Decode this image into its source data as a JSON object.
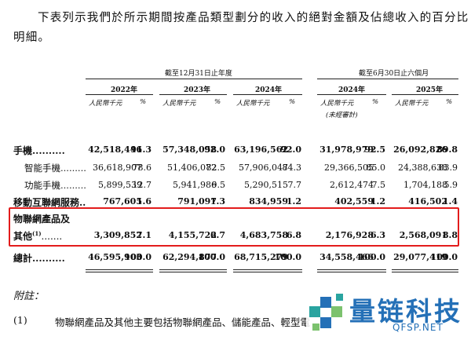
{
  "intro": {
    "line1": "下表列示我們於所示期間按產品類型劃分的收入的絕對金額及佔總收入的百分比",
    "line2": "明細。"
  },
  "table": {
    "group_year": "截至12月31日止年度",
    "group_six": "截至6月30日止六個月",
    "years": [
      "2022年",
      "2023年",
      "2024年",
      "2024年",
      "2025年"
    ],
    "unit_rmb": "人民幣千元",
    "unit_pct": "%",
    "unaudited": "(未經審計)",
    "rows": [
      {
        "label": "手機..........",
        "vals": [
          "42,518,446",
          "91.3",
          "57,348,058",
          "92.0",
          "63,196,562",
          "92.0",
          "31,978,979",
          "92.5",
          "26,092,826",
          "89.8"
        ]
      },
      {
        "label": "智能手機.........",
        "vals": [
          "36,618,907",
          "78.6",
          "51,406,072",
          "82.5",
          "57,906,047",
          "84.3",
          "29,366,505",
          "85.0",
          "24,388,638",
          "83.9"
        ]
      },
      {
        "label": "功能手機.........",
        "vals": [
          "5,899,539",
          "12.7",
          "5,941,986",
          "9.5",
          "5,290,515",
          "7.7",
          "2,612,474",
          "7.5",
          "1,704,188",
          "5.9"
        ]
      },
      {
        "label": "移動互聯網服務..",
        "vals": [
          "767,605",
          "1.6",
          "791,097",
          "1.3",
          "834,959",
          "1.2",
          "402,559",
          "1.2",
          "416,502",
          "1.4"
        ]
      },
      {
        "label_a": "物聯網產品及",
        "label_b": "其他",
        "label_sup": "(1)",
        "label_dots": ".......",
        "vals": [
          "3,309,852",
          "7.1",
          "4,155,722",
          "6.7",
          "4,683,758",
          "6.8",
          "2,176,928",
          "6.3",
          "2,568,091",
          "8.8"
        ]
      },
      {
        "label": "總計..........",
        "vals": [
          "46,595,903",
          "100.0",
          "62,294,877",
          "100.0",
          "68,715,279",
          "100.0",
          "34,558,466",
          "100.0",
          "29,077,419",
          "100.0"
        ]
      }
    ]
  },
  "notes": {
    "title": "附註：",
    "item1_num": "(1)",
    "item1_text": "物聯網產品及其他主要包括物聯網產品、儲能產品、輕型電"
  },
  "watermark": {
    "name": "量链科技",
    "domain": "QFSP.NET",
    "color": "#2470b7"
  }
}
